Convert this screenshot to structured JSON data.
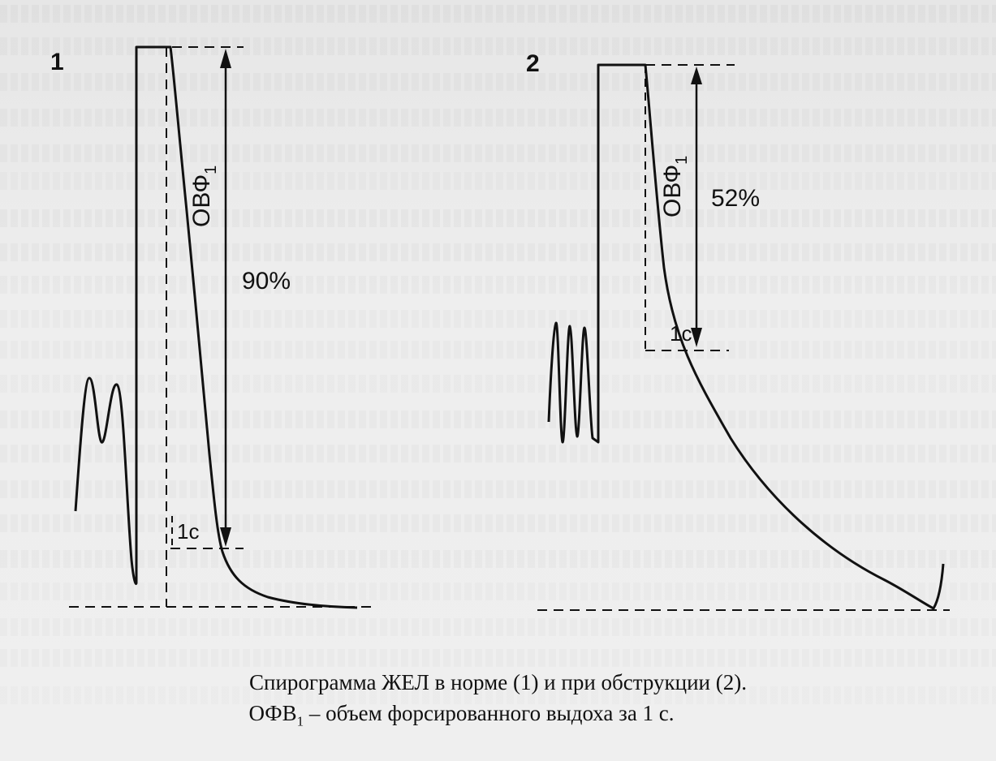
{
  "figure": {
    "panel1": {
      "label": "1",
      "fev_label": "ОВФ",
      "fev_sub": "1",
      "percent": "90%",
      "time_mark": "1с"
    },
    "panel2": {
      "label": "2",
      "fev_label": "ОВФ",
      "fev_sub": "1",
      "percent": "52%",
      "time_mark": "1с"
    }
  },
  "caption": {
    "line1": "Спирограмма ЖЕЛ в норме (1) и при обструкции (2).",
    "line2_prefix": "ОФВ",
    "line2_sub": "1",
    "line2_suffix": " – объем форсированного выдоха за 1 с."
  },
  "colors": {
    "ink": "#111111",
    "paper": "#ececec"
  }
}
